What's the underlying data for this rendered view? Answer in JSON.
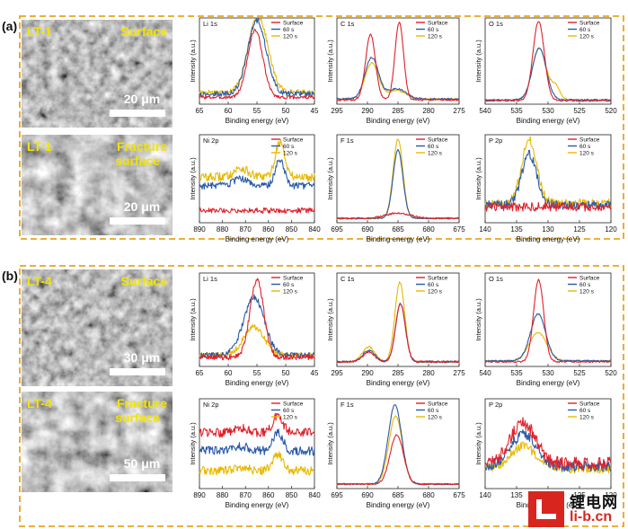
{
  "sections": [
    {
      "label": "(a)",
      "sem": [
        {
          "sample": "LT-1",
          "type": "Surface",
          "scale": "20 μm"
        },
        {
          "sample": "LT-1",
          "type": "Fracture surface",
          "scale": "20 μm"
        }
      ]
    },
    {
      "label": "(b)",
      "sem": [
        {
          "sample": "LT-4",
          "type": "Surface",
          "scale": "30 μm"
        },
        {
          "sample": "LT-4",
          "type": "Fracture surface",
          "scale": "50 μm"
        }
      ]
    }
  ],
  "legend": [
    "Surface",
    "60 s",
    "120 s"
  ],
  "colors": {
    "Surface": "#e0202a",
    "60 s": "#2a5aa8",
    "120 s": "#e8b800",
    "frame": "#e8a61c"
  },
  "ylabel": "Intensity (a.u.)",
  "xlabel": "Binding energy (eV)",
  "watermark": {
    "cn": "锂电网",
    "en": "li-b.cn"
  },
  "chart_data": [
    {
      "panel": "a",
      "row": 0,
      "col": 0,
      "type": "line",
      "title": "Li 1s",
      "xlim": [
        65,
        45
      ],
      "ticks": [
        65,
        60,
        55,
        50,
        45
      ],
      "series": [
        {
          "name": "Surface",
          "peaks": [
            [
              55.3,
              0.78,
              1.3
            ]
          ],
          "base": 0.08,
          "noise": 0.02
        },
        {
          "name": "60 s",
          "peaks": [
            [
              55,
              0.85,
              1.6
            ]
          ],
          "base": 0.12,
          "noise": 0.03
        },
        {
          "name": "120 s",
          "peaks": [
            [
              54.8,
              0.88,
              1.7
            ]
          ],
          "base": 0.14,
          "noise": 0.03
        }
      ]
    },
    {
      "panel": "a",
      "row": 0,
      "col": 1,
      "type": "line",
      "title": "C 1s",
      "xlim": [
        295,
        275
      ],
      "ticks": [
        295,
        290,
        285,
        280,
        275
      ],
      "series": [
        {
          "name": "Surface",
          "peaks": [
            [
              289.5,
              0.76,
              0.8
            ],
            [
              284.8,
              0.9,
              0.7
            ]
          ],
          "base": 0.05,
          "noise": 0.01
        },
        {
          "name": "60 s",
          "peaks": [
            [
              289.3,
              0.48,
              1.1
            ],
            [
              285.2,
              0.12,
              1.5
            ]
          ],
          "base": 0.06,
          "noise": 0.01
        },
        {
          "name": "120 s",
          "peaks": [
            [
              289.3,
              0.42,
              1.1
            ],
            [
              285.2,
              0.1,
              1.5
            ]
          ],
          "base": 0.06,
          "noise": 0.01
        }
      ]
    },
    {
      "panel": "a",
      "row": 0,
      "col": 2,
      "type": "line",
      "title": "O 1s",
      "xlim": [
        540,
        520
      ],
      "ticks": [
        540,
        535,
        530,
        525,
        520
      ],
      "series": [
        {
          "name": "Surface",
          "peaks": [
            [
              531.5,
              0.92,
              0.9
            ]
          ],
          "base": 0.04,
          "noise": 0.008
        },
        {
          "name": "60 s",
          "peaks": [
            [
              531.4,
              0.6,
              1.1
            ]
          ],
          "base": 0.05,
          "noise": 0.008
        },
        {
          "name": "120 s",
          "peaks": [
            [
              531.4,
              0.6,
              1.1
            ],
            [
              528.8,
              0.15,
              0.7
            ]
          ],
          "base": 0.05,
          "noise": 0.008
        }
      ]
    },
    {
      "panel": "a",
      "row": 1,
      "col": 0,
      "type": "line",
      "title": "Ni 2p",
      "xlim": [
        890,
        840
      ],
      "ticks": [
        890,
        880,
        870,
        860,
        850,
        840
      ],
      "series": [
        {
          "name": "Surface",
          "peaks": [],
          "base": 0.14,
          "noise": 0.03
        },
        {
          "name": "60 s",
          "peaks": [
            [
              872,
              0.08,
              3
            ],
            [
              855,
              0.3,
              2
            ]
          ],
          "base": 0.42,
          "noise": 0.04
        },
        {
          "name": "120 s",
          "peaks": [
            [
              872,
              0.1,
              3
            ],
            [
              855,
              0.4,
              2
            ]
          ],
          "base": 0.52,
          "noise": 0.05
        }
      ]
    },
    {
      "panel": "a",
      "row": 1,
      "col": 1,
      "type": "line",
      "title": "F 1s",
      "xlim": [
        695,
        675
      ],
      "ticks": [
        695,
        690,
        685,
        680,
        675
      ],
      "series": [
        {
          "name": "Surface",
          "peaks": [
            [
              685,
              0.06,
              2
            ]
          ],
          "base": 0.05,
          "noise": 0.01
        },
        {
          "name": "60 s",
          "peaks": [
            [
              685,
              0.78,
              0.8
            ]
          ],
          "base": 0.05,
          "noise": 0.006
        },
        {
          "name": "120 s",
          "peaks": [
            [
              685,
              0.9,
              0.8
            ]
          ],
          "base": 0.05,
          "noise": 0.006
        }
      ]
    },
    {
      "panel": "a",
      "row": 1,
      "col": 2,
      "type": "line",
      "title": "P 2p",
      "xlim": [
        140,
        120
      ],
      "ticks": [
        140,
        135,
        130,
        125,
        120
      ],
      "series": [
        {
          "name": "Surface",
          "peaks": [],
          "base": 0.18,
          "noise": 0.05
        },
        {
          "name": "60 s",
          "peaks": [
            [
              133,
              0.58,
              1.2
            ]
          ],
          "base": 0.2,
          "noise": 0.05
        },
        {
          "name": "120 s",
          "peaks": [
            [
              133,
              0.72,
              1.2
            ]
          ],
          "base": 0.22,
          "noise": 0.05
        }
      ]
    },
    {
      "panel": "b",
      "row": 0,
      "col": 0,
      "type": "line",
      "title": "Li 1s",
      "xlim": [
        65,
        45
      ],
      "ticks": [
        65,
        60,
        55,
        50,
        45
      ],
      "series": [
        {
          "name": "Surface",
          "peaks": [
            [
              55,
              0.82,
              1.2
            ]
          ],
          "base": 0.1,
          "noise": 0.03
        },
        {
          "name": "60 s",
          "peaks": [
            [
              55.5,
              0.62,
              1.8
            ]
          ],
          "base": 0.12,
          "noise": 0.03
        },
        {
          "name": "120 s",
          "peaks": [
            [
              55.5,
              0.3,
              1.8
            ]
          ],
          "base": 0.12,
          "noise": 0.03
        }
      ]
    },
    {
      "panel": "b",
      "row": 0,
      "col": 1,
      "type": "line",
      "title": "C 1s",
      "xlim": [
        295,
        275
      ],
      "ticks": [
        295,
        290,
        285,
        280,
        275
      ],
      "series": [
        {
          "name": "Surface",
          "peaks": [
            [
              289.8,
              0.1,
              1
            ],
            [
              284.6,
              0.62,
              0.8
            ]
          ],
          "base": 0.05,
          "noise": 0.01
        },
        {
          "name": "60 s",
          "peaks": [
            [
              289.8,
              0.12,
              1
            ],
            [
              284.6,
              0.62,
              0.8
            ]
          ],
          "base": 0.05,
          "noise": 0.01
        },
        {
          "name": "120 s",
          "peaks": [
            [
              289.8,
              0.16,
              1
            ],
            [
              284.7,
              0.85,
              0.8
            ]
          ],
          "base": 0.05,
          "noise": 0.01
        }
      ]
    },
    {
      "panel": "b",
      "row": 0,
      "col": 2,
      "type": "line",
      "title": "O 1s",
      "xlim": [
        540,
        520
      ],
      "ticks": [
        540,
        535,
        530,
        525,
        520
      ],
      "series": [
        {
          "name": "Surface",
          "peaks": [
            [
              531.5,
              0.88,
              0.8
            ]
          ],
          "base": 0.05,
          "noise": 0.008
        },
        {
          "name": "60 s",
          "peaks": [
            [
              531.6,
              0.5,
              1.2
            ]
          ],
          "base": 0.06,
          "noise": 0.008
        },
        {
          "name": "120 s",
          "peaks": [
            [
              531.6,
              0.3,
              1.4
            ]
          ],
          "base": 0.06,
          "noise": 0.008
        }
      ]
    },
    {
      "panel": "b",
      "row": 1,
      "col": 0,
      "type": "line",
      "title": "Ni 2p",
      "xlim": [
        890,
        840
      ],
      "ticks": [
        890,
        880,
        870,
        860,
        850,
        840
      ],
      "series": [
        {
          "name": "Surface",
          "peaks": [
            [
              872,
              0.06,
              3
            ],
            [
              856,
              0.2,
              2.2
            ]
          ],
          "base": 0.62,
          "noise": 0.05
        },
        {
          "name": "60 s",
          "peaks": [
            [
              872,
              0.05,
              3
            ],
            [
              856,
              0.2,
              2.2
            ]
          ],
          "base": 0.42,
          "noise": 0.05
        },
        {
          "name": "120 s",
          "peaks": [
            [
              872,
              0.04,
              3
            ],
            [
              856,
              0.18,
              2.2
            ]
          ],
          "base": 0.2,
          "noise": 0.05
        }
      ]
    },
    {
      "panel": "b",
      "row": 1,
      "col": 1,
      "type": "line",
      "title": "F 1s",
      "xlim": [
        695,
        675
      ],
      "ticks": [
        695,
        690,
        685,
        680,
        675
      ],
      "series": [
        {
          "name": "Surface",
          "peaks": [
            [
              685.2,
              0.55,
              1.1
            ]
          ],
          "base": 0.05,
          "noise": 0.008
        },
        {
          "name": "60 s",
          "peaks": [
            [
              685.5,
              0.88,
              1.1
            ]
          ],
          "base": 0.05,
          "noise": 0.008
        },
        {
          "name": "120 s",
          "peaks": [
            [
              685.4,
              0.76,
              1.1
            ]
          ],
          "base": 0.05,
          "noise": 0.008
        }
      ]
    },
    {
      "panel": "b",
      "row": 1,
      "col": 2,
      "type": "line",
      "title": "P 2p",
      "xlim": [
        140,
        120
      ],
      "ticks": [
        140,
        135,
        130,
        125,
        120
      ],
      "series": [
        {
          "name": "Surface",
          "peaks": [
            [
              134,
              0.45,
              2
            ]
          ],
          "base": 0.28,
          "noise": 0.07
        },
        {
          "name": "60 s",
          "peaks": [
            [
              134,
              0.35,
              2
            ]
          ],
          "base": 0.25,
          "noise": 0.06
        },
        {
          "name": "120 s",
          "peaks": [
            [
              134,
              0.25,
              2
            ]
          ],
          "base": 0.22,
          "noise": 0.05
        }
      ]
    }
  ]
}
